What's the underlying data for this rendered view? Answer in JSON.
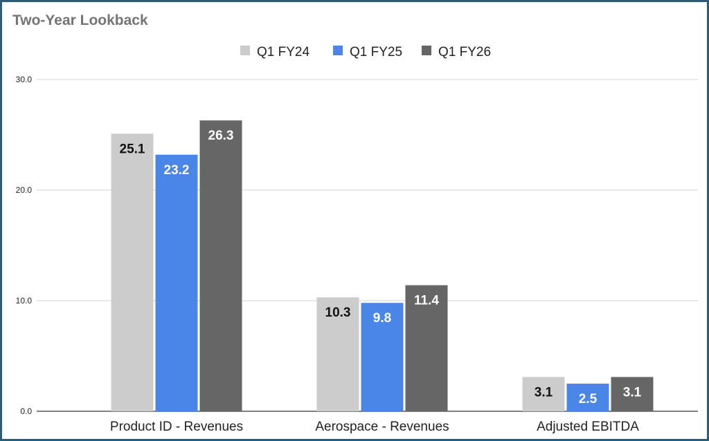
{
  "chart_data": {
    "type": "bar",
    "title": "Two-Year Lookback",
    "categories": [
      "Product ID - Revenues",
      "Aerospace - Revenues",
      "Adjusted EBITDA"
    ],
    "series": [
      {
        "name": "Q1 FY24",
        "color": "#cccccc",
        "label_color": "#111111",
        "values": [
          25.1,
          10.3,
          3.1
        ]
      },
      {
        "name": "Q1 FY25",
        "color": "#4a86e8",
        "label_color": "#ffffff",
        "values": [
          23.2,
          9.8,
          2.5
        ]
      },
      {
        "name": "Q1 FY26",
        "color": "#666666",
        "label_color": "#ffffff",
        "values": [
          26.3,
          11.4,
          3.1
        ]
      }
    ],
    "yticks": [
      "0.0",
      "10.0",
      "20.0",
      "30.0"
    ],
    "ylim": [
      0,
      30
    ],
    "grid": true,
    "legend": "top-center",
    "xlabel": "",
    "ylabel": ""
  }
}
